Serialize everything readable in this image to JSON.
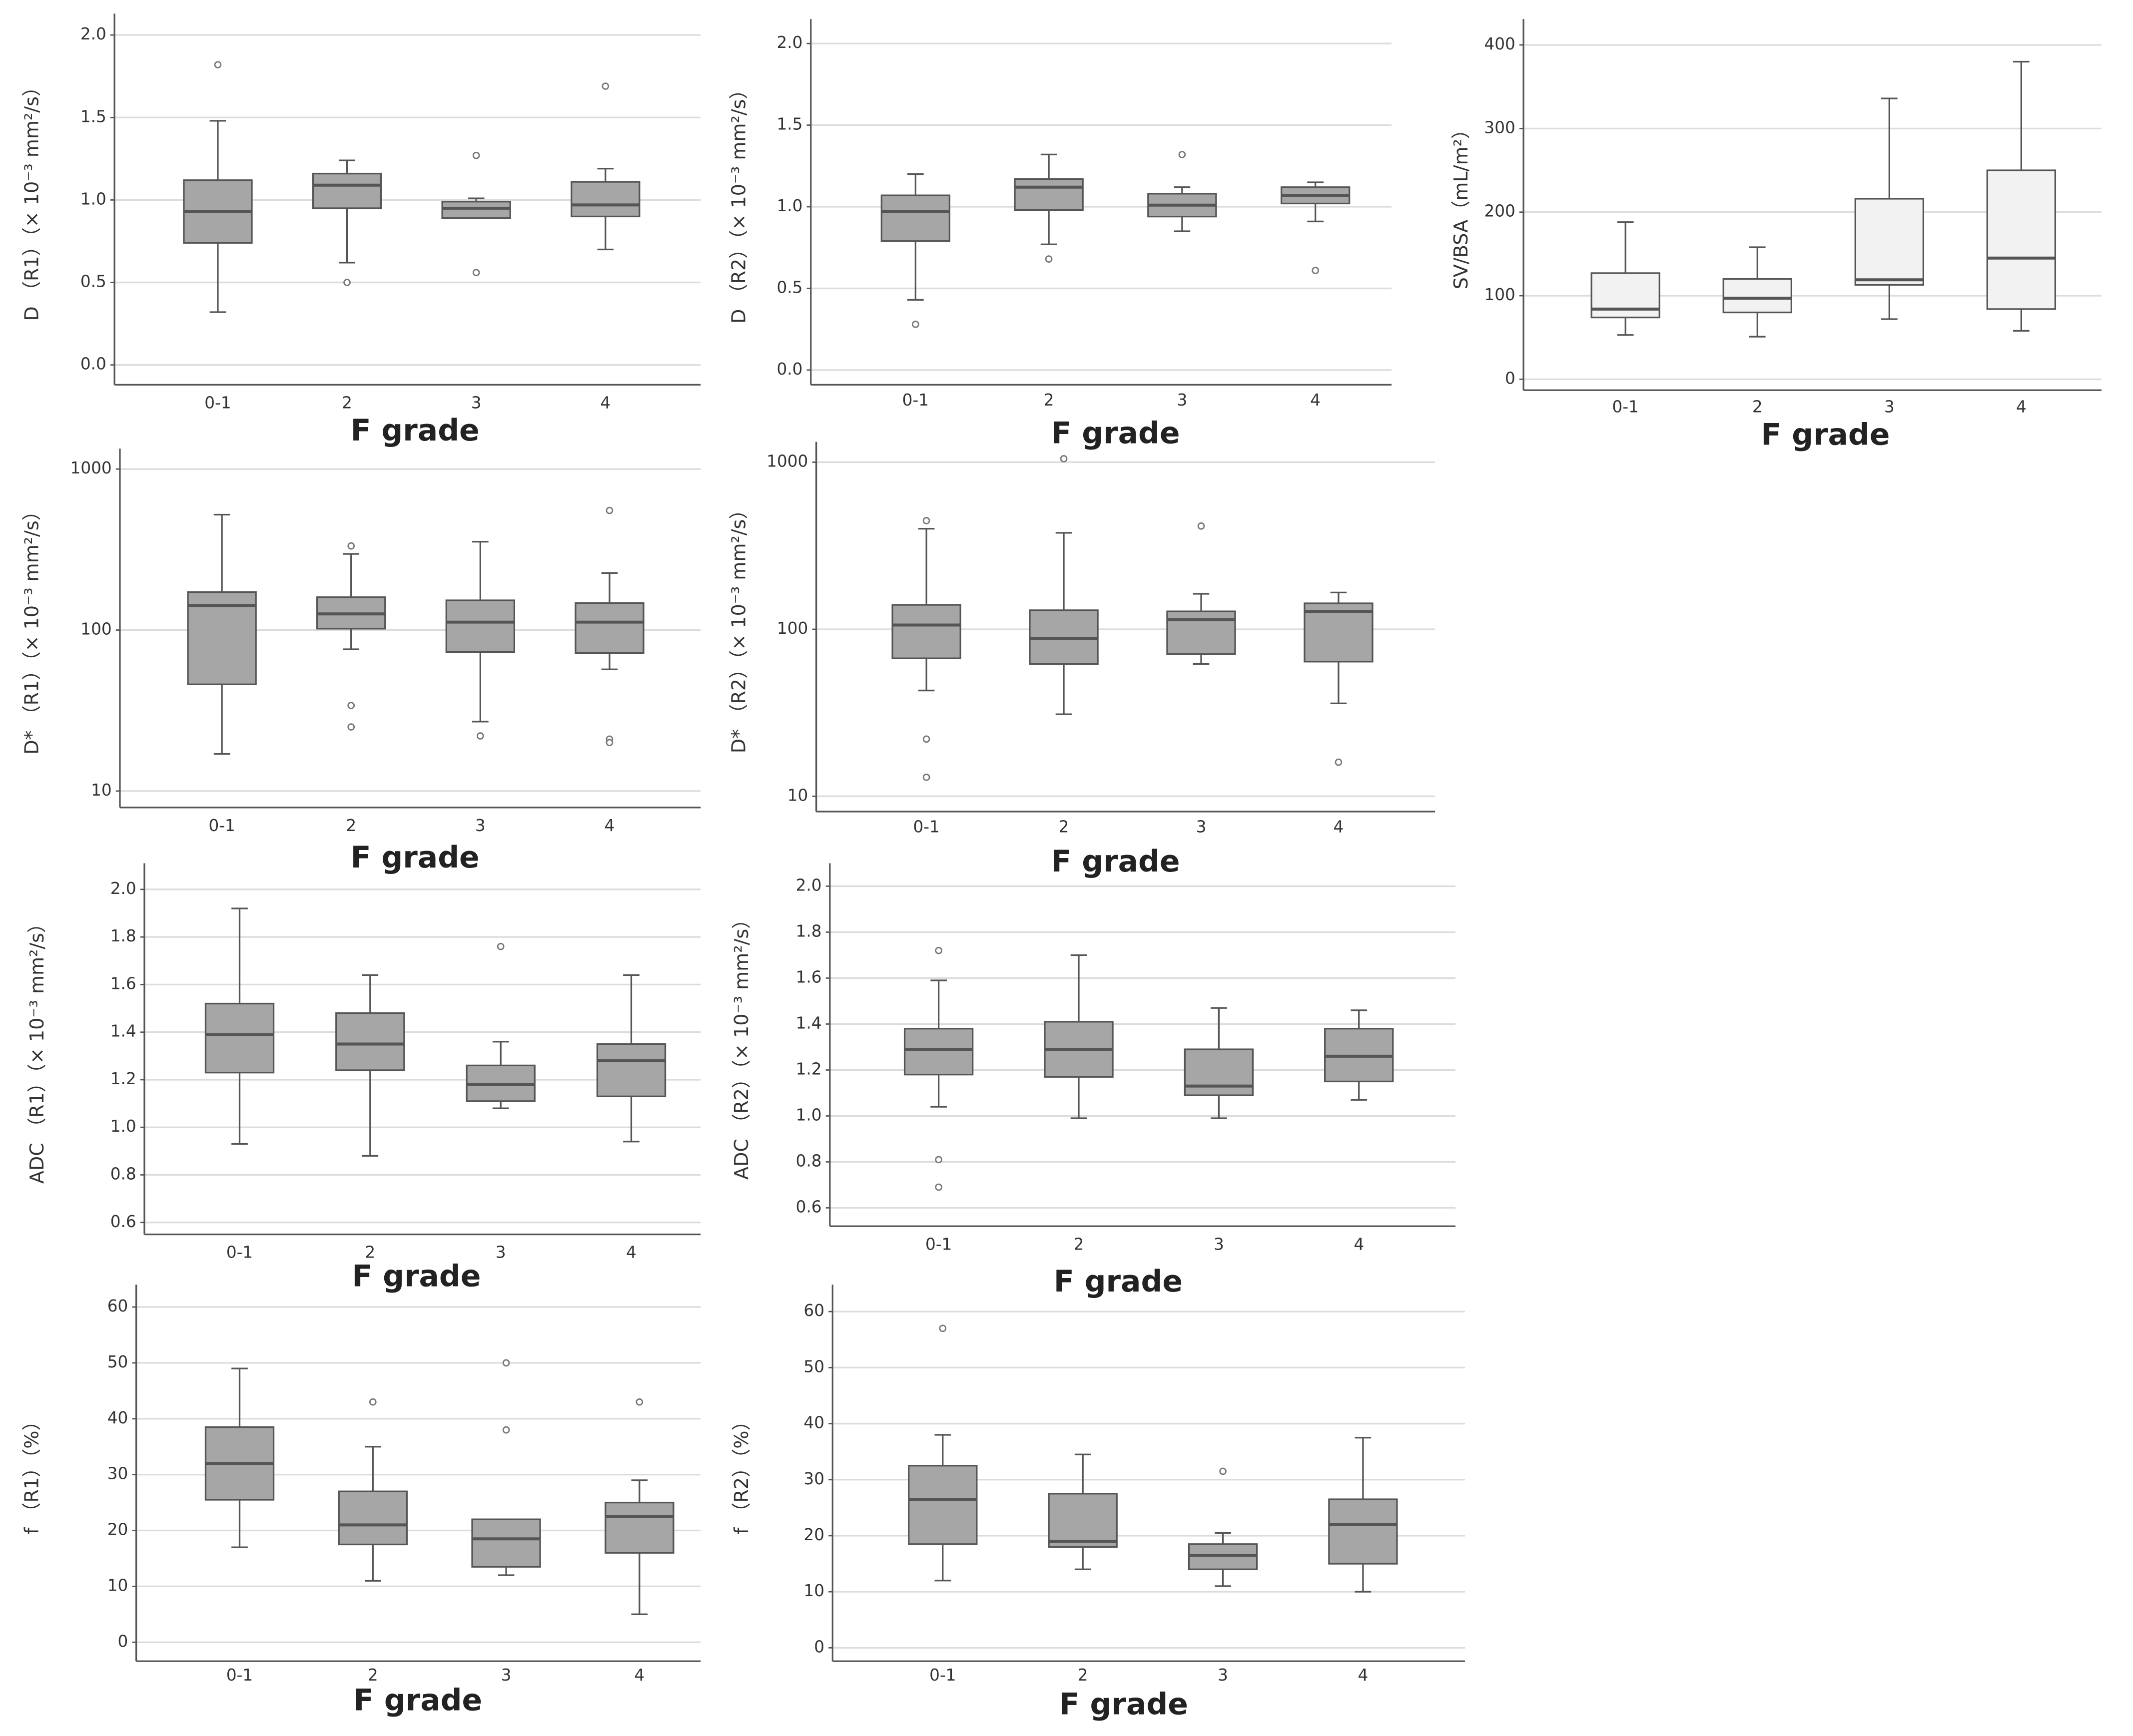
{
  "chart_data": [
    {
      "type": "box",
      "y_label": "D （R1）（× 10⁻³ mm²/s）",
      "x_label": "F grade",
      "categories": [
        "0-1",
        "2",
        "3",
        "4"
      ],
      "color": "#a6a6a6",
      "log_scale": false,
      "grid": true,
      "ylim": [
        -0.12,
        2.13
      ],
      "yticks": [
        {
          "value": 0,
          "label": "0.0"
        },
        0.5,
        {
          "value": 1,
          "label": "1.0"
        },
        1.5,
        {
          "value": 2,
          "label": "2.0"
        }
      ],
      "boxes": [
        {
          "low": 0.32,
          "q1": 0.74,
          "median": 0.93,
          "q3": 1.12,
          "high": 1.48,
          "outliers": [
            1.82
          ]
        },
        {
          "low": 0.62,
          "q1": 0.95,
          "median": 1.09,
          "q3": 1.16,
          "high": 1.24,
          "outliers": [
            0.5
          ]
        },
        {
          "low": 0.89,
          "q1": 0.89,
          "median": 0.95,
          "q3": 0.99,
          "high": 1.01,
          "outliers": [
            1.27,
            0.56
          ]
        },
        {
          "low": 0.7,
          "q1": 0.9,
          "median": 0.97,
          "q3": 1.11,
          "high": 1.19,
          "outliers": [
            1.69
          ]
        }
      ]
    },
    {
      "type": "box",
      "y_label": "D （R2）（× 10⁻³ mm²/s）",
      "x_label": "F grade",
      "categories": [
        "0-1",
        "2",
        "3",
        "4"
      ],
      "color": "#a6a6a6",
      "log_scale": false,
      "grid": true,
      "ylim": [
        -0.09,
        2.15
      ],
      "yticks": [
        {
          "value": 0,
          "label": "0.0"
        },
        0.5,
        {
          "value": 1,
          "label": "1.0"
        },
        1.5,
        {
          "value": 2,
          "label": "2.0"
        }
      ],
      "boxes": [
        {
          "low": 0.43,
          "q1": 0.79,
          "median": 0.97,
          "q3": 1.07,
          "high": 1.2,
          "outliers": [
            0.28
          ]
        },
        {
          "low": 0.77,
          "q1": 0.98,
          "median": 1.12,
          "q3": 1.17,
          "high": 1.32,
          "outliers": [
            0.68
          ]
        },
        {
          "low": 0.85,
          "q1": 0.94,
          "median": 1.01,
          "q3": 1.08,
          "high": 1.12,
          "outliers": [
            1.32
          ]
        },
        {
          "low": 0.91,
          "q1": 1.02,
          "median": 1.07,
          "q3": 1.12,
          "high": 1.15,
          "outliers": [
            0.61
          ]
        }
      ]
    },
    {
      "type": "box",
      "y_label": "SV/BSA（mL/m²）",
      "x_label": "F grade",
      "categories": [
        "0-1",
        "2",
        "3",
        "4"
      ],
      "color": "#f2f2f2",
      "log_scale": false,
      "grid": true,
      "ylim": [
        -13,
        431
      ],
      "yticks": [
        0,
        100,
        200,
        300,
        400
      ],
      "boxes": [
        {
          "low": 53,
          "q1": 74,
          "median": 84,
          "q3": 127,
          "high": 188,
          "outliers": []
        },
        {
          "low": 51,
          "q1": 80,
          "median": 97,
          "q3": 120,
          "high": 158,
          "outliers": []
        },
        {
          "low": 72,
          "q1": 113,
          "median": 119,
          "q3": 216,
          "high": 336,
          "outliers": []
        },
        {
          "low": 58,
          "q1": 84,
          "median": 145,
          "q3": 250,
          "high": 380,
          "outliers": []
        }
      ]
    },
    {
      "type": "box",
      "y_label": "D* （R1）（× 10⁻³ mm²/s）",
      "x_label": "F grade",
      "categories": [
        "0-1",
        "2",
        "3",
        "4"
      ],
      "color": "#a6a6a6",
      "log_scale": true,
      "grid": true,
      "ylim": [
        7.9,
        1340
      ],
      "yticks": [
        10,
        100,
        1000
      ],
      "boxes": [
        {
          "low": 17,
          "q1": 46,
          "median": 142,
          "q3": 172,
          "high": 521,
          "outliers": []
        },
        {
          "low": 76,
          "q1": 102,
          "median": 126,
          "q3": 160,
          "high": 297,
          "outliers": [
            333,
            34,
            25
          ]
        },
        {
          "low": 27,
          "q1": 73,
          "median": 112,
          "q3": 153,
          "high": 354,
          "outliers": [
            22
          ]
        },
        {
          "low": 57,
          "q1": 72,
          "median": 112,
          "q3": 147,
          "high": 226,
          "outliers": [
            553,
            21,
            20
          ]
        }
      ]
    },
    {
      "type": "box",
      "y_label": "D* （R2）（× 10⁻³ mm²/s）",
      "x_label": "F grade",
      "categories": [
        "0-1",
        "2",
        "3",
        "4"
      ],
      "color": "#a6a6a6",
      "log_scale": true,
      "grid": true,
      "ylim": [
        8.1,
        1325
      ],
      "yticks": [
        10,
        100,
        1000
      ],
      "boxes": [
        {
          "low": 43,
          "q1": 67,
          "median": 106,
          "q3": 140,
          "high": 400,
          "outliers": [
            447,
            22,
            13
          ]
        },
        {
          "low": 31,
          "q1": 62,
          "median": 88,
          "q3": 130,
          "high": 378,
          "outliers": [
            1050
          ]
        },
        {
          "low": 62,
          "q1": 71,
          "median": 114,
          "q3": 128,
          "high": 163,
          "outliers": [
            415
          ]
        },
        {
          "low": 36,
          "q1": 64,
          "median": 128,
          "q3": 143,
          "high": 166,
          "outliers": [
            16
          ]
        }
      ]
    },
    {
      "type": "box",
      "y_label": "ADC （R1）（× 10⁻³ mm²/s）",
      "x_label": "F grade",
      "categories": [
        "0-1",
        "2",
        "3",
        "4"
      ],
      "color": "#a6a6a6",
      "log_scale": false,
      "grid": true,
      "ylim": [
        0.55,
        2.11
      ],
      "yticks": [
        0.6,
        0.8,
        {
          "value": 1,
          "label": "1.0"
        },
        1.2,
        1.4,
        1.6,
        1.8,
        {
          "value": 2,
          "label": "2.0"
        }
      ],
      "boxes": [
        {
          "low": 0.93,
          "q1": 1.23,
          "median": 1.39,
          "q3": 1.52,
          "high": 1.92,
          "outliers": []
        },
        {
          "low": 0.88,
          "q1": 1.24,
          "median": 1.35,
          "q3": 1.48,
          "high": 1.64,
          "outliers": []
        },
        {
          "low": 1.08,
          "q1": 1.11,
          "median": 1.18,
          "q3": 1.26,
          "high": 1.36,
          "outliers": [
            1.76
          ]
        },
        {
          "low": 0.94,
          "q1": 1.13,
          "median": 1.28,
          "q3": 1.35,
          "high": 1.64,
          "outliers": []
        }
      ]
    },
    {
      "type": "box",
      "y_label": "ADC （R2）（× 10⁻³ mm²/s）",
      "x_label": "F grade",
      "categories": [
        "0-1",
        "2",
        "3",
        "4"
      ],
      "color": "#a6a6a6",
      "log_scale": false,
      "grid": true,
      "ylim": [
        0.52,
        2.1
      ],
      "yticks": [
        0.6,
        0.8,
        {
          "value": 1,
          "label": "1.0"
        },
        1.2,
        1.4,
        1.6,
        1.8,
        {
          "value": 2,
          "label": "2.0"
        }
      ],
      "boxes": [
        {
          "low": 1.04,
          "q1": 1.18,
          "median": 1.29,
          "q3": 1.38,
          "high": 1.59,
          "outliers": [
            1.72,
            0.81,
            0.69
          ]
        },
        {
          "low": 0.99,
          "q1": 1.17,
          "median": 1.29,
          "q3": 1.41,
          "high": 1.7,
          "outliers": []
        },
        {
          "low": 0.99,
          "q1": 1.09,
          "median": 1.13,
          "q3": 1.29,
          "high": 1.47,
          "outliers": []
        },
        {
          "low": 1.07,
          "q1": 1.15,
          "median": 1.26,
          "q3": 1.38,
          "high": 1.46,
          "outliers": []
        }
      ]
    },
    {
      "type": "box",
      "y_label": "f （R1）（%）",
      "x_label": "F grade",
      "categories": [
        "0-1",
        "2",
        "3",
        "4"
      ],
      "color": "#a6a6a6",
      "log_scale": false,
      "grid": true,
      "ylim": [
        -3.4,
        64
      ],
      "yticks": [
        0,
        10,
        20,
        30,
        40,
        50,
        60
      ],
      "boxes": [
        {
          "low": 17,
          "q1": 25.5,
          "median": 32,
          "q3": 38.5,
          "high": 49,
          "outliers": []
        },
        {
          "low": 11,
          "q1": 17.5,
          "median": 21,
          "q3": 27,
          "high": 35,
          "outliers": [
            43
          ]
        },
        {
          "low": 12,
          "q1": 13.5,
          "median": 18.5,
          "q3": 22,
          "high": 22,
          "outliers": [
            50,
            38
          ]
        },
        {
          "low": 5,
          "q1": 16,
          "median": 22.5,
          "q3": 25,
          "high": 29,
          "outliers": [
            43
          ]
        }
      ]
    },
    {
      "type": "box",
      "y_label": "f （R2）（%）",
      "x_label": "F grade",
      "categories": [
        "0-1",
        "2",
        "3",
        "4"
      ],
      "color": "#a6a6a6",
      "log_scale": false,
      "grid": true,
      "ylim": [
        -2.4,
        64.8
      ],
      "yticks": [
        0,
        10,
        20,
        30,
        40,
        50,
        60
      ],
      "boxes": [
        {
          "low": 12,
          "q1": 18.5,
          "median": 26.5,
          "q3": 32.5,
          "high": 38,
          "outliers": [
            57
          ]
        },
        {
          "low": 14,
          "q1": 18,
          "median": 19,
          "q3": 27.5,
          "high": 34.5,
          "outliers": []
        },
        {
          "low": 11,
          "q1": 14,
          "median": 16.5,
          "q3": 18.5,
          "high": 20.5,
          "outliers": [
            31.5
          ]
        },
        {
          "low": 10,
          "q1": 15,
          "median": 22,
          "q3": 26.5,
          "high": 37.5,
          "outliers": []
        }
      ]
    }
  ]
}
